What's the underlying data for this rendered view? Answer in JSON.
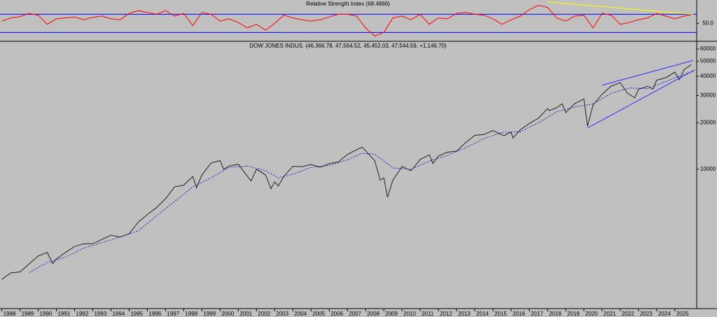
{
  "chart_data": [
    {
      "type": "line",
      "title": "Relative Strength Index (68.4866)",
      "ylim": [
        12,
        101.5
      ],
      "xlim": [
        1987.9,
        2026.2
      ],
      "yticks": [
        {
          "value": 50,
          "label": "50.0"
        }
      ],
      "levels": [
        70,
        30
      ],
      "level_color": "#0000ff",
      "series": [
        {
          "color": "#ff0000",
          "x": [
            1988,
            1988.5,
            1989,
            1989.5,
            1990,
            1990.5,
            1991,
            1991.5,
            1992,
            1992.5,
            1993,
            1993.5,
            1994,
            1994.5,
            1995,
            1995.5,
            1996,
            1996.5,
            1997,
            1997.5,
            1998,
            1998.5,
            1999,
            1999.5,
            2000,
            2000.5,
            2001,
            2001.5,
            2002,
            2002.5,
            2003,
            2003.5,
            2004,
            2004.5,
            2005,
            2005.5,
            2006,
            2006.5,
            2007,
            2007.5,
            2008,
            2008.5,
            2009,
            2009.5,
            2010,
            2010.5,
            2011,
            2011.5,
            2012,
            2012.5,
            2013,
            2013.5,
            2014,
            2014.5,
            2015,
            2015.5,
            2016,
            2016.5,
            2017,
            2017.5,
            2018,
            2018.5,
            2019,
            2019.5,
            2020,
            2020.5,
            2021,
            2021.5,
            2022,
            2022.5,
            2023,
            2023.5,
            2024,
            2024.5,
            2025,
            2025.5,
            2025.9
          ],
          "values": [
            55,
            62,
            65,
            72,
            68,
            48,
            60,
            62,
            64,
            58,
            63,
            66,
            60,
            58,
            72,
            78,
            74,
            70,
            78,
            66,
            72,
            45,
            74,
            70,
            55,
            60,
            52,
            40,
            48,
            35,
            50,
            68,
            62,
            58,
            55,
            58,
            64,
            70,
            70,
            66,
            40,
            22,
            30,
            62,
            66,
            58,
            70,
            48,
            62,
            60,
            72,
            74,
            70,
            68,
            60,
            48,
            58,
            66,
            80,
            90,
            85,
            62,
            55,
            66,
            68,
            40,
            72,
            68,
            48,
            52,
            58,
            62,
            72,
            66,
            60,
            66,
            68.5
          ]
        }
      ],
      "trendlines": [
        {
          "color": "#ffff00",
          "x": [
            2018.0,
            2026.0
          ],
          "values": [
            97,
            70
          ]
        }
      ]
    },
    {
      "type": "line",
      "title": "DOW JONES INDUS. (46,366.78, 47,564.52, 45,452.03, 47,544.59, +1,146.70)",
      "log_scale": true,
      "ylim": [
        1270,
        65200
      ],
      "xlim": [
        1987.9,
        2026.2
      ],
      "yticks": [
        60000,
        50000,
        40000,
        30000,
        20000,
        10000
      ],
      "xticks": [
        1988,
        1989,
        1990,
        1991,
        1992,
        1993,
        1994,
        1995,
        1996,
        1997,
        1998,
        1999,
        2000,
        2001,
        2002,
        2003,
        2004,
        2005,
        2006,
        2007,
        2008,
        2009,
        2010,
        2011,
        2012,
        2013,
        2014,
        2015,
        2016,
        2017,
        2018,
        2019,
        2020,
        2021,
        2022,
        2023,
        2024,
        2025
      ],
      "series": [
        {
          "color": "#222222",
          "x": [
            1988.0,
            1988.5,
            1989.0,
            1989.5,
            1990.0,
            1990.5,
            1990.8,
            1991.0,
            1991.5,
            1992.0,
            1992.5,
            1993.0,
            1993.5,
            1994.0,
            1994.5,
            1995.0,
            1995.5,
            1996.0,
            1996.5,
            1997.0,
            1997.5,
            1998.0,
            1998.5,
            1998.7,
            1999.0,
            1999.5,
            2000.0,
            2000.2,
            2000.5,
            2001.0,
            2001.7,
            2002.0,
            2002.5,
            2002.8,
            2003.0,
            2003.2,
            2003.5,
            2004.0,
            2004.5,
            2005.0,
            2005.5,
            2006.0,
            2006.5,
            2007.0,
            2007.5,
            2007.8,
            2008.0,
            2008.5,
            2008.8,
            2009.0,
            2009.2,
            2009.5,
            2010.0,
            2010.5,
            2011.0,
            2011.5,
            2011.7,
            2012.0,
            2012.5,
            2013.0,
            2013.5,
            2014.0,
            2014.5,
            2015.0,
            2015.6,
            2016.0,
            2016.1,
            2016.5,
            2017.0,
            2017.5,
            2018.0,
            2018.1,
            2018.5,
            2018.8,
            2019.0,
            2019.5,
            2020.0,
            2020.2,
            2020.5,
            2021.0,
            2021.5,
            2022.0,
            2022.4,
            2022.8,
            2023.0,
            2023.5,
            2023.8,
            2024.0,
            2024.5,
            2025.0,
            2025.25,
            2025.5,
            2025.9
          ],
          "values": [
            1940,
            2140,
            2170,
            2440,
            2750,
            2900,
            2450,
            2630,
            2900,
            3170,
            3300,
            3300,
            3520,
            3750,
            3650,
            3830,
            4550,
            5100,
            5650,
            6450,
            7700,
            7900,
            9000,
            7600,
            9200,
            10970,
            11400,
            10000,
            10500,
            10800,
            8400,
            10000,
            9200,
            7500,
            8300,
            7800,
            9000,
            10450,
            10400,
            10750,
            10300,
            10900,
            11150,
            12460,
            13400,
            13900,
            13200,
            11350,
            8500,
            8800,
            6600,
            8500,
            10430,
            9800,
            11580,
            12400,
            10900,
            12200,
            12900,
            13100,
            14900,
            16580,
            16800,
            17800,
            16500,
            17400,
            15900,
            18000,
            19800,
            21400,
            24700,
            24000,
            25000,
            26500,
            23300,
            26600,
            28500,
            19000,
            26000,
            30600,
            34500,
            36300,
            31000,
            29000,
            33000,
            34400,
            33000,
            37700,
            39100,
            42500,
            38000,
            44000,
            47500
          ]
        },
        {
          "color": "#2020c0",
          "dashed": true,
          "x": [
            1989.5,
            1990.5,
            1991.5,
            1992.5,
            1993.5,
            1994.5,
            1995.5,
            1996.5,
            1997.5,
            1998.5,
            1999.5,
            2000.5,
            2001.5,
            2002.5,
            2003.2,
            2004.0,
            2005.0,
            2006.0,
            2007.0,
            2007.8,
            2008.5,
            2009.5,
            2010.5,
            2011.5,
            2012.5,
            2013.5,
            2014.5,
            2015.5,
            2016.5,
            2017.5,
            2018.5,
            2019.5,
            2020.5,
            2021.5,
            2022.5,
            2023.5,
            2024.5,
            2025.5,
            2026.0
          ],
          "values": [
            2150,
            2500,
            2700,
            3100,
            3350,
            3650,
            4000,
            5000,
            6200,
            7700,
            8800,
            10300,
            10500,
            9800,
            8800,
            9300,
            10300,
            10600,
            11500,
            12700,
            12500,
            10200,
            10000,
            11300,
            12300,
            13800,
            15800,
            17300,
            17500,
            20000,
            23500,
            25300,
            26500,
            31000,
            33600,
            33200,
            37000,
            41000,
            43000
          ]
        }
      ],
      "trendlines": [
        {
          "color": "#3030ff",
          "x": [
            2021.0,
            2026.0
          ],
          "values": [
            35000,
            50500
          ]
        },
        {
          "color": "#3030ff",
          "x": [
            2020.2,
            2026.1
          ],
          "values": [
            18500,
            44000
          ]
        }
      ]
    }
  ]
}
